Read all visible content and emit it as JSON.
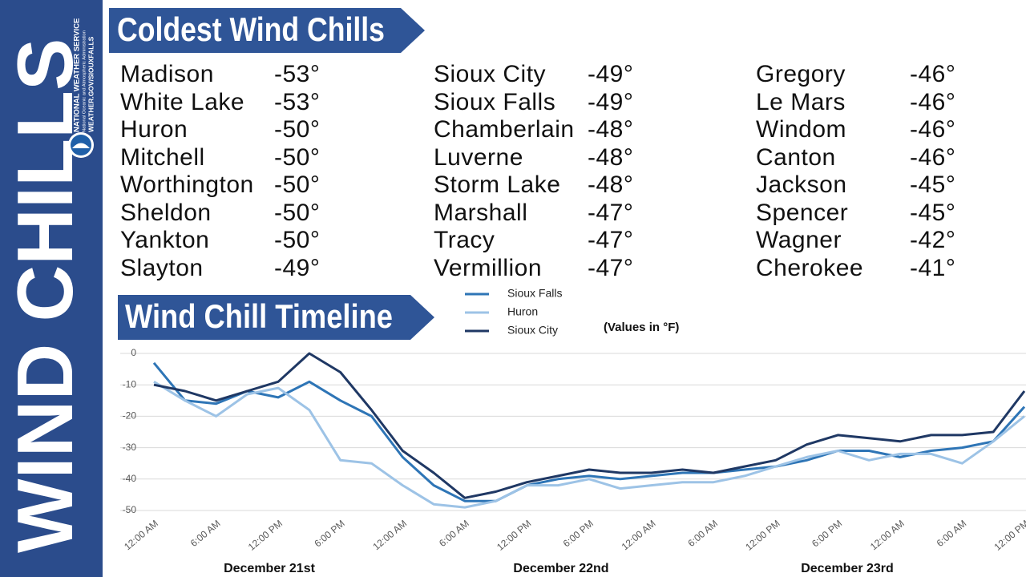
{
  "sidebar": {
    "title": "WIND CHILLS",
    "agency": "NATIONAL WEATHER SERVICE",
    "agency_sub": "National Oceanic and Atmospheric Administration",
    "website": "WEATHER.GOV/SIOUXFALLS"
  },
  "list_title": "Coldest Wind Chills",
  "wind_chills": {
    "columns": [
      [
        {
          "location": "Madison",
          "value": "-53°"
        },
        {
          "location": "White Lake",
          "value": "-53°"
        },
        {
          "location": "Huron",
          "value": "-50°"
        },
        {
          "location": "Mitchell",
          "value": "-50°"
        },
        {
          "location": "Worthington",
          "value": "-50°"
        },
        {
          "location": "Sheldon",
          "value": "-50°"
        },
        {
          "location": "Yankton",
          "value": "-50°"
        },
        {
          "location": "Slayton",
          "value": "-49°"
        }
      ],
      [
        {
          "location": "Sioux City",
          "value": "-49°"
        },
        {
          "location": "Sioux Falls",
          "value": "-49°"
        },
        {
          "location": "Chamberlain",
          "value": "-48°"
        },
        {
          "location": "Luverne",
          "value": "-48°"
        },
        {
          "location": "Storm Lake",
          "value": "-48°"
        },
        {
          "location": "Marshall",
          "value": "-47°"
        },
        {
          "location": "Tracy",
          "value": "-47°"
        },
        {
          "location": "Vermillion",
          "value": "-47°"
        }
      ],
      [
        {
          "location": "Gregory",
          "value": "-46°"
        },
        {
          "location": "Le Mars",
          "value": "-46°"
        },
        {
          "location": "Windom",
          "value": "-46°"
        },
        {
          "location": "Canton",
          "value": "-46°"
        },
        {
          "location": "Jackson",
          "value": "-45°"
        },
        {
          "location": "Spencer",
          "value": "-45°"
        },
        {
          "location": "Wagner",
          "value": "-42°"
        },
        {
          "location": "Cherokee",
          "value": "-41°"
        }
      ]
    ]
  },
  "chart_data": {
    "type": "line",
    "title": "Wind Chill Timeline",
    "annotation": "(Values in °F)",
    "categories": [
      "12:00 AM",
      null,
      "6:00 AM",
      null,
      "12:00 PM",
      null,
      "6:00 PM",
      null,
      "12:00 AM",
      null,
      "6:00 AM",
      null,
      "12:00 PM",
      null,
      "6:00 PM",
      null,
      "12:00 AM",
      null,
      "6:00 AM",
      null,
      "12:00 PM",
      null,
      "6:00 PM",
      null,
      "12:00 AM",
      null,
      "6:00 AM",
      null,
      "12:00 PM"
    ],
    "x_groups": [
      "December 21st",
      "December 22nd",
      "December 23rd"
    ],
    "series": [
      {
        "name": "Sioux Falls",
        "color": "#2e75b6",
        "values": [
          -3,
          -15,
          -16,
          -12,
          -14,
          -9,
          -15,
          -20,
          -33,
          -42,
          -47,
          -47,
          -42,
          -40,
          -39,
          -40,
          -39,
          -38,
          -38,
          -37,
          -36,
          -34,
          -31,
          -31,
          -33,
          -31,
          -30,
          -28,
          -17
        ]
      },
      {
        "name": "Huron",
        "color": "#9dc3e6",
        "values": [
          -9,
          -15,
          -20,
          -13,
          -11,
          -18,
          -34,
          -35,
          -42,
          -48,
          -49,
          -47,
          -42,
          -42,
          -40,
          -43,
          -42,
          -41,
          -41,
          -39,
          -36,
          -33,
          -31,
          -34,
          -32,
          -32,
          -35,
          -28,
          -20
        ]
      },
      {
        "name": "Sioux City",
        "color": "#1f3864",
        "values": [
          -10,
          -12,
          -15,
          -12,
          -9,
          0,
          -6,
          -18,
          -31,
          -38,
          -46,
          -44,
          -41,
          -39,
          -37,
          -38,
          -38,
          -37,
          -38,
          -36,
          -34,
          -29,
          -26,
          -27,
          -28,
          -26,
          -26,
          -25,
          -12
        ]
      }
    ],
    "ylim": [
      -50,
      0
    ],
    "yticks": [
      0,
      -10,
      -20,
      -30,
      -40,
      -50
    ],
    "grid": true
  }
}
